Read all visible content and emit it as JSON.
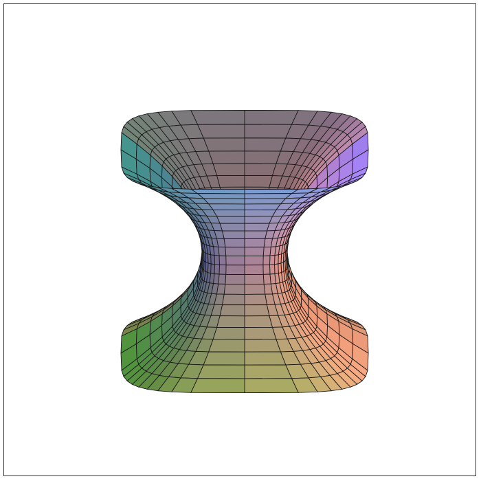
{
  "figure": {
    "kind": "3d-parametric-surface",
    "shading": "hue-gradient-mesh",
    "background": "#ffffff",
    "frame_color": "#333333",
    "mesh_color": "#1a1a1a",
    "colors": {
      "top_left": "#5fd1c4",
      "top_right": "#9a7cf0",
      "neck_left": "#7a86d8",
      "neck_right": "#e58a6a",
      "bottom_left": "#6fd04f",
      "bottom_right": "#e79a78",
      "inner_warm": "#e9a07c"
    }
  }
}
